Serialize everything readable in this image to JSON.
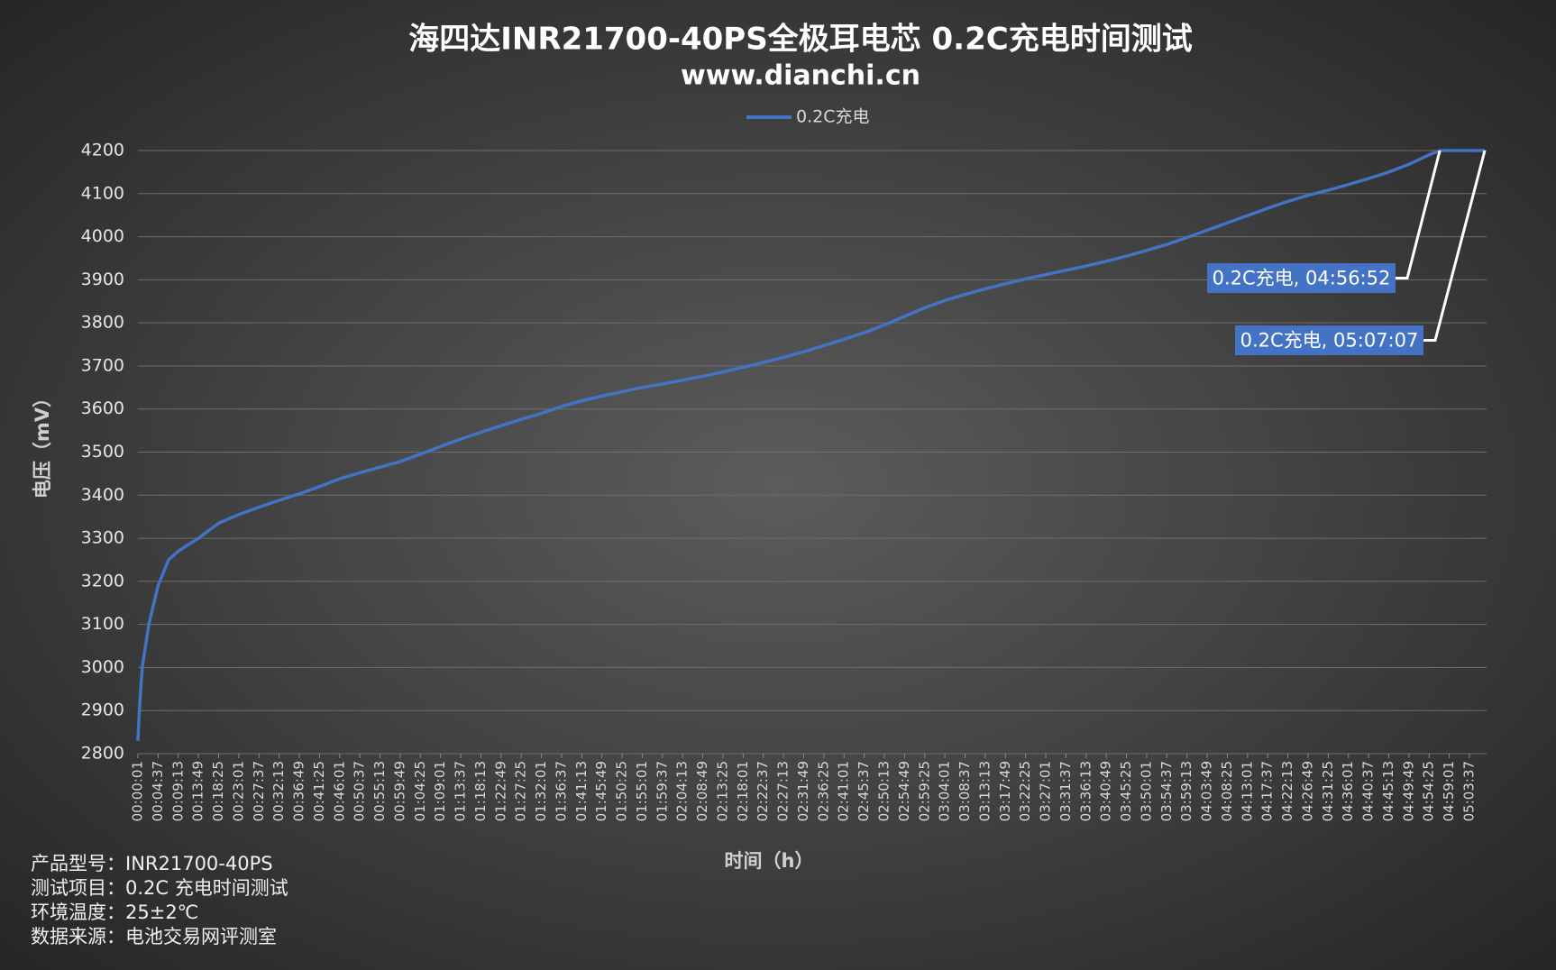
{
  "chart_data": {
    "type": "line",
    "title": "海四达INR21700-40PS全极耳电芯 0.2C充电时间测试",
    "subtitle": "www.dianchi.cn",
    "x_label": "时间（h）",
    "y_label": "电压（mV）",
    "legend": "top",
    "grid": true,
    "xlim": [
      "00:00:01",
      "05:07:07"
    ],
    "ylim": [
      2800,
      4200
    ],
    "yticks": [
      2800,
      2900,
      3000,
      3100,
      3200,
      3300,
      3400,
      3500,
      3600,
      3700,
      3800,
      3900,
      4000,
      4100,
      4200
    ],
    "xticks": [
      "00:00:01",
      "00:04:37",
      "00:09:13",
      "00:13:49",
      "00:18:25",
      "00:23:01",
      "00:27:37",
      "00:32:13",
      "00:36:49",
      "00:41:25",
      "00:46:01",
      "00:50:37",
      "00:55:13",
      "00:59:49",
      "01:04:25",
      "01:09:01",
      "01:13:37",
      "01:18:13",
      "01:22:49",
      "01:27:25",
      "01:32:01",
      "01:36:37",
      "01:41:13",
      "01:45:49",
      "01:50:25",
      "01:55:01",
      "01:59:37",
      "02:04:13",
      "02:08:49",
      "02:13:25",
      "02:18:01",
      "02:22:37",
      "02:27:13",
      "02:31:49",
      "02:36:25",
      "02:41:01",
      "02:45:37",
      "02:50:13",
      "02:54:49",
      "02:59:25",
      "03:04:01",
      "03:08:37",
      "03:13:13",
      "03:17:49",
      "03:22:25",
      "03:27:01",
      "03:31:37",
      "03:36:13",
      "03:40:49",
      "03:45:25",
      "03:50:01",
      "03:54:37",
      "03:59:13",
      "04:03:49",
      "04:08:25",
      "04:13:01",
      "04:17:37",
      "04:22:13",
      "04:26:49",
      "04:31:25",
      "04:36:01",
      "04:40:37",
      "04:45:13",
      "04:49:49",
      "04:54:25",
      "04:59:01",
      "05:03:37"
    ],
    "x": [
      "00:00:01",
      "00:00:20",
      "00:01:00",
      "00:02:30",
      "00:04:37",
      "00:07:00",
      "00:09:13",
      "00:13:49",
      "00:18:25",
      "00:23:01",
      "00:27:37",
      "00:32:13",
      "00:36:49",
      "00:41:25",
      "00:46:01",
      "00:50:37",
      "00:55:13",
      "00:59:49",
      "01:04:25",
      "01:09:01",
      "01:13:37",
      "01:18:13",
      "01:22:49",
      "01:27:25",
      "01:32:01",
      "01:36:37",
      "01:41:13",
      "01:45:49",
      "01:50:25",
      "01:55:01",
      "01:59:37",
      "02:04:13",
      "02:08:49",
      "02:13:25",
      "02:18:01",
      "02:22:37",
      "02:27:13",
      "02:31:49",
      "02:36:25",
      "02:41:01",
      "02:45:37",
      "02:50:13",
      "02:54:49",
      "02:59:25",
      "03:04:01",
      "03:08:37",
      "03:13:13",
      "03:17:49",
      "03:22:25",
      "03:27:01",
      "03:31:37",
      "03:36:13",
      "03:40:49",
      "03:45:25",
      "03:50:01",
      "03:54:37",
      "03:59:13",
      "04:03:49",
      "04:08:25",
      "04:13:01",
      "04:17:37",
      "04:22:13",
      "04:26:49",
      "04:31:25",
      "04:36:01",
      "04:40:37",
      "04:45:13",
      "04:49:49",
      "04:54:25",
      "04:56:52",
      "05:07:07"
    ],
    "series": [
      {
        "name": "0.2C充电",
        "color": "#4472c4",
        "values": [
          2830,
          2900,
          3000,
          3100,
          3190,
          3250,
          3270,
          3300,
          3335,
          3355,
          3372,
          3388,
          3403,
          3420,
          3438,
          3452,
          3465,
          3478,
          3495,
          3513,
          3530,
          3546,
          3561,
          3576,
          3590,
          3606,
          3619,
          3630,
          3640,
          3650,
          3658,
          3667,
          3676,
          3686,
          3697,
          3708,
          3720,
          3733,
          3747,
          3762,
          3777,
          3795,
          3815,
          3835,
          3852,
          3866,
          3879,
          3891,
          3902,
          3912,
          3922,
          3932,
          3943,
          3955,
          3968,
          3982,
          3998,
          4015,
          4032,
          4049,
          4066,
          4082,
          4096,
          4108,
          4121,
          4135,
          4150,
          4168,
          4190,
          4200,
          4200
        ]
      }
    ],
    "annotations": [
      {
        "text": "0.2C充电, 04:56:52",
        "x": "04:56:52",
        "y": 4200
      },
      {
        "text": "0.2C充电, 05:07:07",
        "x": "05:07:07",
        "y": 4200
      }
    ],
    "footnotes": [
      "产品型号：INR21700-40PS",
      "测试项目：0.2C 充电时间测试",
      "环境温度：25±2℃",
      "数据来源：电池交易网评测室"
    ]
  }
}
